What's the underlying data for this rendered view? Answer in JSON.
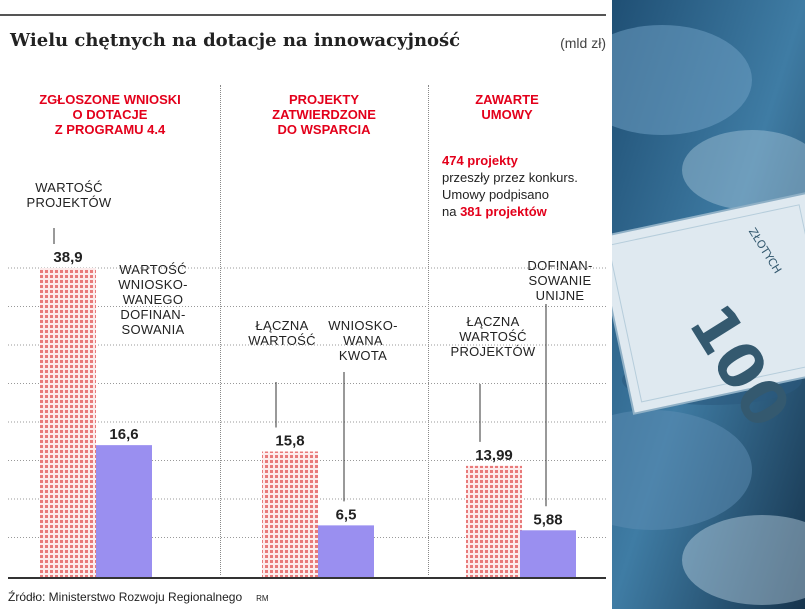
{
  "title": "Wielu chętnych na dotacje na innowacyjność",
  "unit": "(mld zł)",
  "source": "Źródło: Ministerstwo Rozwoju Regionalnego",
  "author": "RM",
  "colors": {
    "accent_red": "#e3001b",
    "pattern_red": "#e87a7a",
    "purple": "#9a8ff0"
  },
  "sections": [
    {
      "header": "ZGŁOSZONE WNIOSKI\nO DOTACJE\nZ PROGRAMU 4.4",
      "bar_labels": [
        "WARTOŚĆ\nPROJEKTÓW",
        "WARTOŚĆ\nWNIOSKO-\nWANEGO\nDOFINAN-\nSOWANIA"
      ]
    },
    {
      "header": "PROJEKTY\nZATWIERDZONE\nDO WSPARCIA",
      "bar_labels": [
        "ŁĄCZNA\nWARTOŚĆ",
        "WNIOSKO-\nWANA\nKWOTA"
      ]
    },
    {
      "header": "ZAWARTE\nUMOWY",
      "bar_labels": [
        "ŁĄCZNA\nWARTOŚĆ\nPROJEKTÓW",
        "DOFINAN-\nSOWANIE\nUNIJNE"
      ]
    }
  ],
  "note": {
    "line1_bold": "474 projekty",
    "line2": "przeszły przez konkurs.",
    "line3": "Umowy podpisano",
    "line4_prefix": "na ",
    "line4_bold": "381 projektów"
  },
  "chart_data": {
    "type": "bar",
    "title": "Wielu chętnych na dotacje na innowacyjność",
    "unit": "mld zł",
    "ylim": [
      0,
      45
    ],
    "groups": [
      {
        "name": "ZGŁOSZONE WNIOSKI O DOTACJE Z PROGRAMU 4.4",
        "bars": [
          {
            "label": "WARTOŚĆ PROJEKTÓW",
            "value": 38.9,
            "value_text": "38,9"
          },
          {
            "label": "WARTOŚĆ WNIOSKOWANEGO DOFINANSOWANIA",
            "value": 16.6,
            "value_text": "16,6"
          }
        ]
      },
      {
        "name": "PROJEKTY ZATWIERDZONE DO WSPARCIA",
        "bars": [
          {
            "label": "ŁĄCZNA WARTOŚĆ",
            "value": 15.8,
            "value_text": "15,8"
          },
          {
            "label": "WNIOSKOWANA KWOTA",
            "value": 6.5,
            "value_text": "6,5"
          }
        ]
      },
      {
        "name": "ZAWARTE UMOWY",
        "bars": [
          {
            "label": "ŁĄCZNA WARTOŚĆ PROJEKTÓW",
            "value": 13.99,
            "value_text": "13,99"
          },
          {
            "label": "DOFINANSOWANIE UNIJNE",
            "value": 5.88,
            "value_text": "5,88"
          }
        ]
      }
    ]
  },
  "photo": {
    "banknote_text": "100",
    "banknote_small_text": "ZŁOTYCH"
  }
}
